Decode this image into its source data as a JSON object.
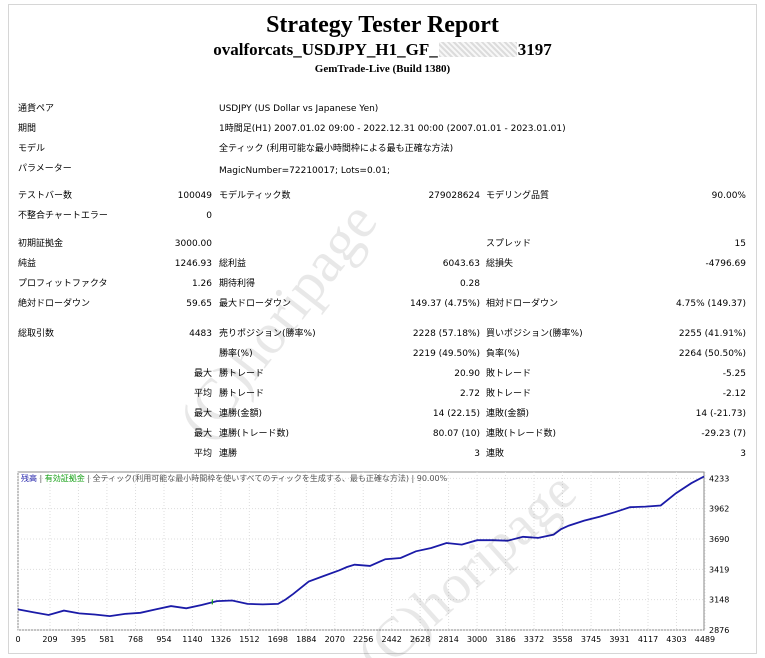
{
  "report": {
    "title": "Strategy Tester Report",
    "ea_prefix": "ovalforcats_USDJPY_H1_GF_",
    "ea_suffix": "3197",
    "server": "GemTrade-Live (Build 1380)"
  },
  "info": {
    "symbol_label": "通貨ペア",
    "symbol_value": "USDJPY (US Dollar vs Japanese Yen)",
    "period_label": "期間",
    "period_value": "1時間足(H1) 2007.01.02 09:00 - 2022.12.31 00:00 (2007.01.01 - 2023.01.01)",
    "model_label": "モデル",
    "model_value": "全ティック (利用可能な最小時間枠による最も正確な方法)",
    "params_label": "パラメーター",
    "params_value": "MagicNumber=72210017; Lots=0.01;"
  },
  "stats": {
    "bars_label": "テストバー数",
    "bars_value": "100049",
    "ticks_label": "モデルティック数",
    "ticks_value": "279028624",
    "quality_label": "モデリング品質",
    "quality_value": "90.00%",
    "mismatch_label": "不整合チャートエラー",
    "mismatch_value": "0",
    "deposit_label": "初期証拠金",
    "deposit_value": "3000.00",
    "spread_label": "スプレッド",
    "spread_value": "15",
    "net_label": "純益",
    "net_value": "1246.93",
    "gross_profit_label": "総利益",
    "gross_profit_value": "6043.63",
    "gross_loss_label": "総損失",
    "gross_loss_value": "-4796.69",
    "pf_label": "プロフィットファクタ",
    "pf_value": "1.26",
    "expected_label": "期待利得",
    "expected_value": "0.28",
    "abs_dd_label": "絶対ドローダウン",
    "abs_dd_value": "59.65",
    "max_dd_label": "最大ドローダウン",
    "max_dd_value": "149.37 (4.75%)",
    "rel_dd_label": "相対ドローダウン",
    "rel_dd_value": "4.75% (149.37)",
    "trades_label": "総取引数",
    "trades_value": "4483",
    "short_label": "売りポジション(勝率%)",
    "short_value": "2228 (57.18%)",
    "long_label": "買いポジション(勝率%)",
    "long_value": "2255 (41.91%)",
    "win_rate_label": "勝率(%)",
    "win_rate_value": "2219 (49.50%)",
    "loss_rate_label": "負率(%)",
    "loss_rate_value": "2264 (50.50%)",
    "largest": "最大",
    "average": "平均",
    "maximum": "最大",
    "maximal": "最大",
    "lw_label": "勝トレード",
    "lw_value": "20.90",
    "ll_label": "敗トレード",
    "ll_value": "-5.25",
    "aw_label": "勝トレード",
    "aw_value": "2.72",
    "al_label": "敗トレード",
    "al_value": "-2.12",
    "cw_label": "連勝(金額)",
    "cw_value": "14 (22.15)",
    "cl_label": "連敗(金額)",
    "cl_value": "14 (-21.73)",
    "mcp_label": "連勝(トレード数)",
    "mcp_value": "80.07 (10)",
    "mcl_label": "連敗(トレード数)",
    "mcl_value": "-29.23 (7)",
    "acw_label": "連勝",
    "acw_value": "3",
    "acl_label": "連敗",
    "acl_value": "3"
  },
  "watermark": {
    "text": "(C)horipage"
  },
  "chart_data": {
    "type": "line",
    "legend": [
      "残高",
      "有効証拠金",
      "全ティック(利用可能な最小時間枠を使いすべてのティックを生成する、最も正確な方法)",
      "90.00%"
    ],
    "colors": {
      "balance": "#1b1ba8",
      "equity": "#1aa31a",
      "legend_text": "#555555",
      "axis": "#000000",
      "grid": "#dddddd"
    },
    "xticks": [
      0,
      209,
      395,
      581,
      768,
      954,
      1140,
      1326,
      1512,
      1698,
      1884,
      2070,
      2256,
      2442,
      2628,
      2814,
      3000,
      3186,
      3372,
      3558,
      3745,
      3931,
      4117,
      4303,
      4489
    ],
    "yticks": [
      2876,
      3148,
      3419,
      3690,
      3962,
      4233
    ],
    "xlim": [
      0,
      4483
    ],
    "ylim": [
      2876,
      4290
    ],
    "x": [
      0,
      100,
      200,
      300,
      400,
      500,
      600,
      700,
      800,
      900,
      1000,
      1100,
      1200,
      1300,
      1400,
      1500,
      1600,
      1700,
      1750,
      1800,
      1900,
      2000,
      2100,
      2150,
      2200,
      2300,
      2400,
      2500,
      2600,
      2700,
      2800,
      2900,
      3000,
      3100,
      3200,
      3300,
      3400,
      3500,
      3550,
      3600,
      3700,
      3800,
      3900,
      4000,
      4100,
      4200,
      4300,
      4400,
      4483
    ],
    "y": [
      3060,
      3035,
      3010,
      3050,
      3025,
      3015,
      3000,
      3020,
      3030,
      3060,
      3090,
      3070,
      3100,
      3135,
      3140,
      3110,
      3105,
      3110,
      3150,
      3200,
      3310,
      3360,
      3410,
      3440,
      3460,
      3450,
      3510,
      3520,
      3580,
      3610,
      3655,
      3640,
      3680,
      3680,
      3675,
      3710,
      3700,
      3730,
      3780,
      3810,
      3855,
      3890,
      3930,
      3975,
      3980,
      3990,
      4100,
      4190,
      4250
    ]
  }
}
